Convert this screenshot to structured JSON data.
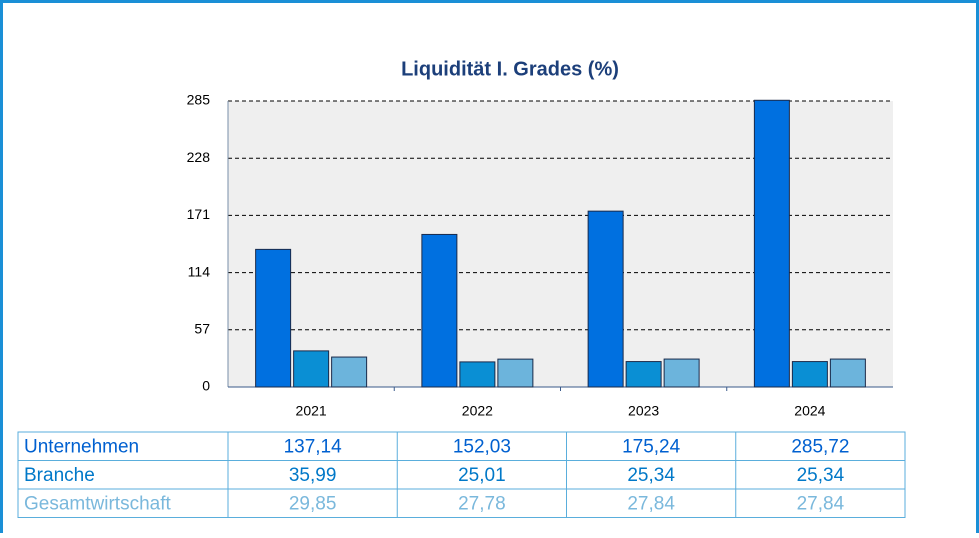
{
  "chart_data": {
    "type": "bar",
    "title": "Liquidität I. Grades (%)",
    "categories": [
      "2021",
      "2022",
      "2023",
      "2024"
    ],
    "series": [
      {
        "name": "Unternehmen",
        "color": "#0070e0",
        "values": [
          137.14,
          152.03,
          175.24,
          285.72
        ],
        "value_labels": [
          "137,14",
          "152,03",
          "175,24",
          "285,72"
        ]
      },
      {
        "name": "Branche",
        "color": "#0a8fd4",
        "values": [
          35.99,
          25.01,
          25.34,
          25.34
        ],
        "value_labels": [
          "35,99",
          "25,01",
          "25,34",
          "25,34"
        ]
      },
      {
        "name": "Gesamtwirtschaft",
        "color": "#6cb4dc",
        "values": [
          29.85,
          27.78,
          27.84,
          27.84
        ],
        "value_labels": [
          "29,85",
          "27,78",
          "27,84",
          "27,84"
        ]
      }
    ],
    "ylim": [
      0,
      285
    ],
    "yticks": [
      0,
      57,
      114,
      171,
      228,
      285
    ],
    "grid": true
  }
}
